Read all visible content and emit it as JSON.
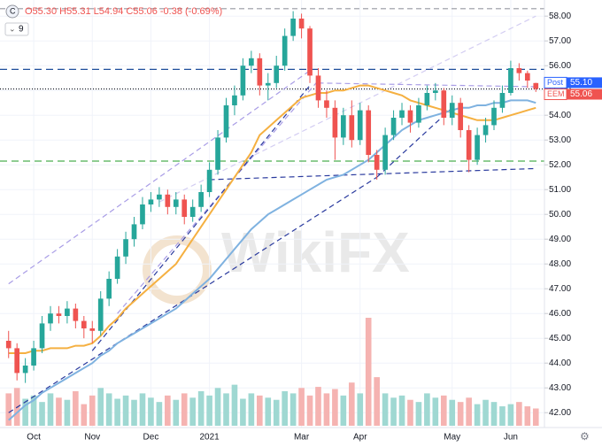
{
  "chart_data": {
    "type": "candlestick",
    "legend_text": "O55.30 H55.31 L54.94 C55.06 -0.38 (-0.69%)",
    "indicator_count": 9,
    "watermark": "WikiFX",
    "categories": [
      null,
      null,
      null,
      "Oct",
      null,
      null,
      null,
      null,
      null,
      null,
      "Nov",
      null,
      null,
      null,
      null,
      null,
      null,
      "Dec",
      null,
      null,
      null,
      null,
      null,
      null,
      "2021",
      null,
      null,
      null,
      null,
      null,
      null,
      null,
      null,
      null,
      null,
      "Mar",
      null,
      null,
      null,
      null,
      null,
      null,
      "Apr",
      null,
      null,
      null,
      null,
      null,
      null,
      null,
      null,
      null,
      null,
      "May",
      null,
      null,
      null,
      null,
      null,
      null,
      "Jun",
      null,
      null,
      null
    ],
    "open": [
      44.9,
      44.6,
      43.6,
      43.9,
      44.6,
      45.6,
      46.0,
      45.9,
      46.2,
      45.7,
      45.4,
      45.3,
      46.6,
      47.4,
      48.3,
      49.0,
      49.6,
      50.4,
      50.6,
      50.8,
      50.3,
      50.6,
      49.9,
      50.3,
      50.9,
      51.8,
      53.1,
      54.4,
      54.8,
      56.0,
      56.3,
      55.2,
      55.3,
      56.0,
      57.2,
      57.9,
      57.5,
      55.6,
      54.6,
      54.3,
      53.1,
      54.0,
      53.0,
      54.2,
      52.4,
      51.8,
      53.2,
      53.9,
      54.2,
      53.7,
      54.4,
      54.9,
      55.0,
      53.9,
      54.5,
      53.4,
      52.2,
      53.2,
      53.6,
      54.3,
      54.9,
      55.9,
      55.7,
      55.3
    ],
    "high": [
      45.3,
      44.8,
      44.2,
      44.9,
      45.9,
      46.3,
      46.3,
      46.5,
      46.4,
      45.9,
      45.7,
      46.9,
      47.7,
      48.6,
      49.3,
      49.9,
      50.7,
      50.9,
      51.1,
      51.0,
      50.9,
      50.8,
      50.6,
      51.2,
      52.1,
      53.4,
      54.7,
      55.2,
      56.3,
      56.6,
      56.5,
      55.7,
      56.4,
      57.5,
      58.2,
      58.1,
      57.6,
      55.9,
      55.0,
      54.6,
      54.3,
      54.6,
      54.5,
      54.4,
      52.6,
      53.5,
      54.2,
      54.5,
      54.4,
      54.7,
      55.2,
      55.3,
      55.1,
      54.8,
      54.7,
      53.6,
      53.5,
      53.9,
      54.6,
      55.2,
      56.2,
      56.1,
      55.8,
      55.31
    ],
    "low": [
      44.2,
      43.3,
      43.2,
      43.7,
      44.4,
      45.3,
      45.6,
      45.6,
      45.4,
      45.0,
      44.8,
      45.1,
      46.3,
      47.2,
      48.0,
      48.7,
      49.4,
      50.1,
      50.3,
      50.0,
      50.0,
      49.6,
      49.7,
      50.1,
      50.7,
      51.6,
      52.9,
      54.0,
      54.6,
      55.7,
      54.8,
      54.6,
      55.1,
      55.8,
      57.0,
      57.1,
      55.3,
      54.3,
      53.9,
      52.2,
      52.8,
      52.7,
      52.8,
      52.1,
      51.4,
      51.6,
      53.0,
      53.6,
      53.3,
      53.5,
      54.2,
      54.6,
      53.6,
      53.6,
      53.1,
      51.7,
      52.0,
      52.9,
      53.4,
      54.1,
      54.8,
      55.4,
      55.1,
      54.94
    ],
    "close": [
      44.6,
      43.6,
      43.9,
      44.6,
      45.6,
      46.0,
      45.9,
      46.2,
      45.7,
      45.4,
      45.3,
      46.6,
      47.4,
      48.3,
      49.0,
      49.6,
      50.4,
      50.6,
      50.8,
      50.3,
      50.6,
      49.9,
      50.3,
      50.9,
      51.8,
      53.1,
      54.4,
      54.8,
      56.0,
      56.3,
      55.2,
      55.3,
      56.0,
      57.2,
      57.9,
      57.5,
      55.6,
      54.6,
      54.3,
      53.1,
      54.0,
      53.0,
      54.2,
      52.4,
      51.8,
      53.2,
      53.9,
      54.2,
      53.7,
      54.4,
      54.9,
      55.0,
      53.9,
      54.5,
      53.4,
      52.2,
      53.2,
      53.6,
      54.3,
      54.9,
      55.9,
      55.7,
      55.4,
      55.06
    ],
    "volume": [
      30,
      35,
      25,
      28,
      22,
      30,
      26,
      24,
      32,
      20,
      28,
      35,
      30,
      25,
      28,
      24,
      30,
      26,
      22,
      28,
      24,
      30,
      26,
      32,
      28,
      35,
      30,
      38,
      25,
      30,
      28,
      26,
      24,
      32,
      30,
      35,
      28,
      36,
      30,
      34,
      28,
      40,
      30,
      100,
      45,
      30,
      26,
      28,
      24,
      22,
      30,
      26,
      28,
      24,
      22,
      26,
      20,
      24,
      22,
      18,
      20,
      22,
      18,
      16
    ],
    "up_color": "#26a69a",
    "down_color": "#ef5350",
    "up_volume_color": "#9fd8d2",
    "down_volume_color": "#f5b3b1",
    "moving_averages": [
      {
        "color": "#f5b041",
        "values": [
          44.4,
          44.4,
          44.4,
          44.5,
          44.5,
          44.6,
          44.6,
          44.6,
          44.7,
          44.7,
          44.8,
          45.1,
          45.5,
          45.8,
          46.2,
          46.5,
          46.8,
          47.1,
          47.4,
          47.7,
          48.0,
          48.5,
          49.0,
          49.5,
          50.0,
          50.5,
          51.0,
          51.5,
          52.0,
          52.5,
          53.2,
          53.5,
          53.8,
          54.1,
          54.4,
          54.7,
          54.8,
          54.9,
          54.9,
          55.0,
          55.0,
          55.1,
          55.2,
          55.2,
          55.1,
          55.0,
          54.9,
          54.8,
          54.6,
          54.5,
          54.4,
          54.3,
          54.2,
          54.1,
          54.0,
          53.9,
          53.8,
          53.8,
          53.8,
          53.9,
          54.0,
          54.1,
          54.2,
          54.3
        ]
      },
      {
        "color": "#7fb2e0",
        "values": [
          41.7,
          42.0,
          42.3,
          42.5,
          42.8,
          43.0,
          43.2,
          43.4,
          43.6,
          43.8,
          44.0,
          44.3,
          44.5,
          44.8,
          45.0,
          45.2,
          45.4,
          45.6,
          45.8,
          46.0,
          46.2,
          46.5,
          46.8,
          47.1,
          47.4,
          47.8,
          48.2,
          48.6,
          49.0,
          49.4,
          49.7,
          50.0,
          50.2,
          50.4,
          50.6,
          50.8,
          51.0,
          51.2,
          51.4,
          51.5,
          51.6,
          51.8,
          52.0,
          52.2,
          52.5,
          52.8,
          53.1,
          53.4,
          53.6,
          53.8,
          53.9,
          54.0,
          54.1,
          54.2,
          54.3,
          54.3,
          54.4,
          54.4,
          54.5,
          54.5,
          54.6,
          54.6,
          54.6,
          54.5
        ]
      }
    ],
    "levels": [
      {
        "value": 58.3,
        "color": "#9598a1",
        "dash": "6 4"
      },
      {
        "value": 55.85,
        "color": "#1f4e9c",
        "dash": "8 5"
      },
      {
        "value": 52.15,
        "color": "#4caf50",
        "dash": "8 5"
      },
      {
        "value": 55.06,
        "color": "#131722",
        "dash": "1 2"
      }
    ],
    "trendlines": [
      {
        "color": "#a99de6",
        "x": [
          0,
          36
        ],
        "y": [
          47.2,
          55.8
        ]
      },
      {
        "color": "#a99de6",
        "x": [
          13,
          37
        ],
        "y": [
          46.0,
          55.4
        ]
      },
      {
        "color": "#d3cdf2",
        "x": [
          18,
          63
        ],
        "y": [
          50.5,
          58.0
        ]
      },
      {
        "color": "#a99de6",
        "x": [
          37,
          63
        ],
        "y": [
          55.3,
          55.15
        ]
      },
      {
        "color": "#2a3a9e",
        "x": [
          0,
          44
        ],
        "y": [
          42.0,
          51.5
        ]
      },
      {
        "color": "#2a3a9e",
        "x": [
          44,
          53
        ],
        "y": [
          51.5,
          54.3
        ]
      },
      {
        "color": "#2a3a9e",
        "x": [
          10,
          36
        ],
        "y": [
          44.5,
          55.2
        ]
      },
      {
        "color": "#2a3a9e",
        "x": [
          24,
          63
        ],
        "y": [
          51.4,
          51.85
        ]
      }
    ],
    "price_labels": [
      {
        "name": "Post",
        "value": 55.1,
        "value_label": "55.10",
        "color": "#2962ff"
      },
      {
        "name": "EEM",
        "value": 55.06,
        "value_label": "55.06",
        "color": "#ef5350"
      }
    ],
    "ylim": [
      41.4,
      58.65
    ],
    "yticks": [
      {
        "value": 42,
        "label": "42.00"
      },
      {
        "value": 43,
        "label": "43.00"
      },
      {
        "value": 44,
        "label": "44.00"
      },
      {
        "value": 45,
        "label": "45.00"
      },
      {
        "value": 46,
        "label": "46.00"
      },
      {
        "value": 47,
        "label": "47.00"
      },
      {
        "value": 48,
        "label": "48.00"
      },
      {
        "value": 49,
        "label": "49.00"
      },
      {
        "value": 50,
        "label": "50.00"
      },
      {
        "value": 51,
        "label": "51.00"
      },
      {
        "value": 52,
        "label": "52.00"
      },
      {
        "value": 53,
        "label": "53.00"
      },
      {
        "value": 54,
        "label": "54.00"
      },
      {
        "value": 55,
        "label": "55.00"
      },
      {
        "value": 56,
        "label": "56.00"
      },
      {
        "value": 57,
        "label": "57.00"
      },
      {
        "value": 58,
        "label": "58.00"
      }
    ]
  }
}
